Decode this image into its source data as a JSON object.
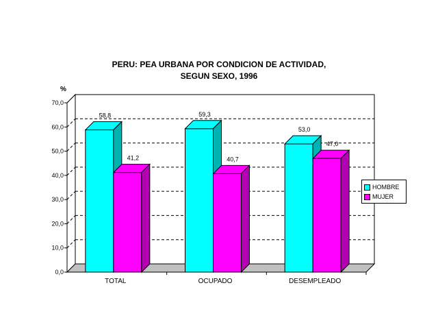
{
  "chart_data": {
    "type": "bar",
    "title": "PERU: PEA URBANA POR CONDICION DE ACTIVIDAD,",
    "subtitle": "SEGUN SEXO, 1996",
    "ylabel": "%",
    "xlabel": "",
    "ylim": [
      0,
      70
    ],
    "ytick_labels": [
      "0,0",
      "10,0",
      "20,0",
      "30,0",
      "40,0",
      "50,0",
      "60,0",
      "70,0"
    ],
    "categories": [
      "TOTAL",
      "OCUPADO",
      "DESEMPLEADO"
    ],
    "series": [
      {
        "name": "HOMBRE",
        "values": [
          58.8,
          59.3,
          53.0
        ],
        "labels": [
          "58,8",
          "59,3",
          "53,0"
        ],
        "color": "#00FFFF",
        "side_color": "#00B3B3"
      },
      {
        "name": "MUJER",
        "values": [
          41.2,
          40.7,
          47.0
        ],
        "labels": [
          "41,2",
          "40,7",
          "47,0"
        ],
        "color": "#FF00FF",
        "side_color": "#B300B3"
      }
    ],
    "grid": true,
    "legend": "right"
  }
}
